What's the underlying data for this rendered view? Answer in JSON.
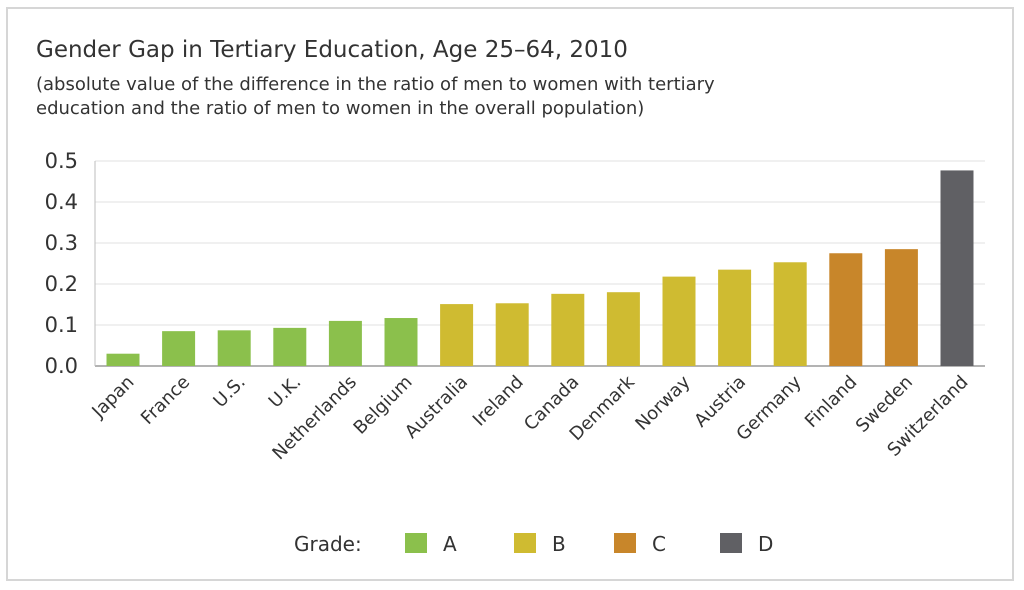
{
  "chart_data": {
    "type": "bar",
    "title": "Gender Gap in Tertiary Education, Age 25–64, 2010",
    "subtitle_lines": [
      "(absolute value of the difference in the ratio of men to women with tertiary",
      "education and the ratio of men to women in the overall population)"
    ],
    "categories": [
      "Japan",
      "France",
      "U.S.",
      "U.K.",
      "Netherlands",
      "Belgium",
      "Australia",
      "Ireland",
      "Canada",
      "Denmark",
      "Norway",
      "Austria",
      "Germany",
      "Finland",
      "Sweden",
      "Switzerland"
    ],
    "values": [
      0.03,
      0.085,
      0.087,
      0.093,
      0.11,
      0.117,
      0.151,
      0.153,
      0.176,
      0.18,
      0.218,
      0.235,
      0.253,
      0.275,
      0.285,
      0.477
    ],
    "grades": [
      "A",
      "A",
      "A",
      "A",
      "A",
      "A",
      "B",
      "B",
      "B",
      "B",
      "B",
      "B",
      "B",
      "C",
      "C",
      "D"
    ],
    "ylim": [
      0,
      0.5
    ],
    "yticks": [
      "0.0",
      "0.1",
      "0.2",
      "0.3",
      "0.4",
      "0.5"
    ],
    "xlabel": "",
    "ylabel": "",
    "grid": true,
    "legend": {
      "label": "Grade:",
      "placement": "bottom-center",
      "items": [
        {
          "name": "A",
          "color": "#8bc04c"
        },
        {
          "name": "B",
          "color": "#cfbb31"
        },
        {
          "name": "C",
          "color": "#c8862a"
        },
        {
          "name": "D",
          "color": "#606064"
        }
      ]
    },
    "colors": {
      "A": "#8bc04c",
      "B": "#cfbb31",
      "C": "#c8862a",
      "D": "#606064"
    }
  }
}
